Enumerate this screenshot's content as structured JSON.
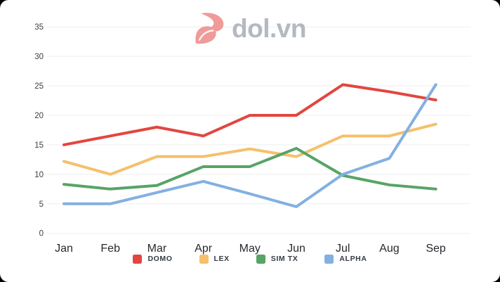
{
  "page": {
    "background_color": "#000000",
    "card_color": "#ffffff"
  },
  "logo": {
    "text": "dol.vn",
    "text_color": "#b3b9c0",
    "mark_color": "#f09a9a"
  },
  "chart_data": {
    "type": "line",
    "title": "",
    "xlabel": "",
    "ylabel": "",
    "x": [
      "Jan",
      "Feb",
      "Mar",
      "Apr",
      "May",
      "Jun",
      "Jul",
      "Aug",
      "Sep"
    ],
    "series": [
      {
        "name": "DOMO",
        "color": "#e2463f",
        "values": [
          15,
          16.5,
          18,
          16.5,
          20,
          20,
          25.2,
          24,
          22.6
        ]
      },
      {
        "name": "LEX",
        "color": "#f5c06c",
        "values": [
          12.2,
          10,
          13,
          13,
          14.3,
          13,
          16.5,
          16.5,
          18.5
        ]
      },
      {
        "name": "SIM TX",
        "color": "#57a465",
        "values": [
          8.3,
          7.5,
          8.1,
          11.3,
          11.3,
          14.4,
          9.8,
          8.2,
          7.5
        ]
      },
      {
        "name": "ALPHA",
        "color": "#83b0e1",
        "values": [
          5,
          5,
          6.9,
          8.8,
          6.7,
          4.5,
          10,
          12.7,
          25.2
        ]
      }
    ],
    "ylim": [
      0,
      35
    ],
    "yticks": [
      0,
      5,
      10,
      15,
      20,
      25,
      30,
      35
    ],
    "grid": true,
    "legend_position": "bottom"
  }
}
